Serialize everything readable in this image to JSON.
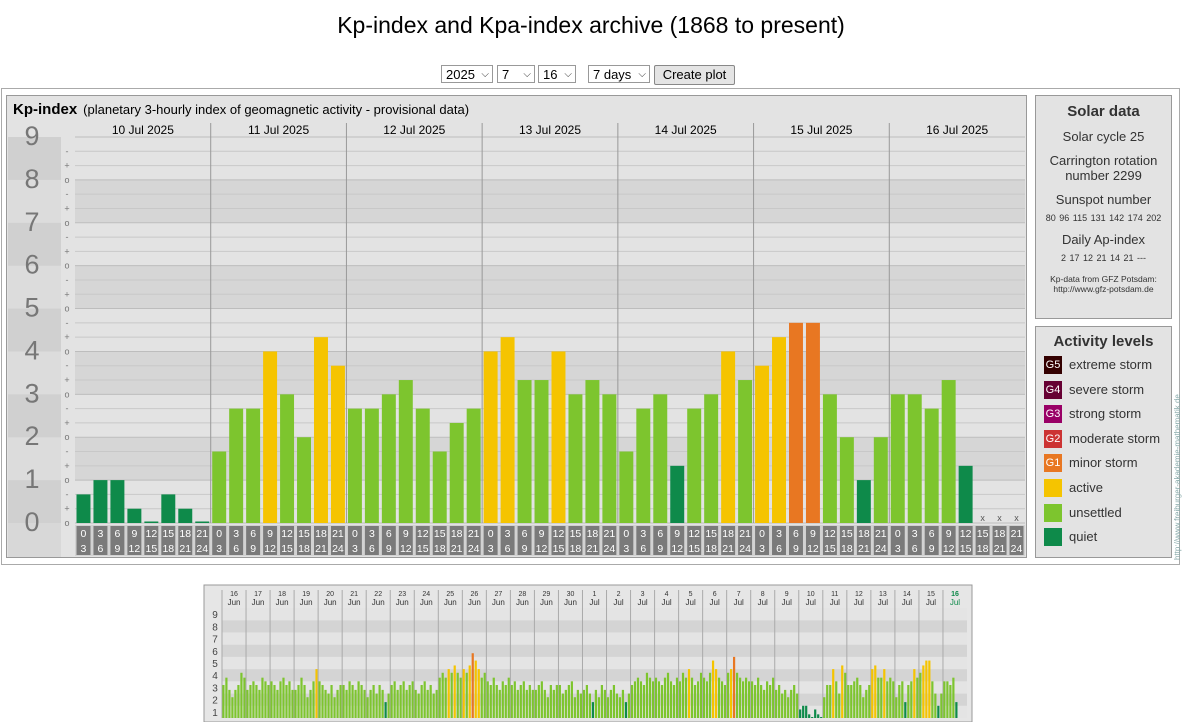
{
  "title": "Kp-index and Kpa-index archive (1868 to present)",
  "controls": {
    "year": "2025",
    "month": "7",
    "day": "16",
    "span": "7 days",
    "create_label": "Create plot"
  },
  "kp_panel": {
    "title": "Kp-index",
    "subtitle": "(planetary 3-hourly index of geomagnetic activity - provisional data)"
  },
  "solar": {
    "title": "Solar data",
    "cycle": "Solar cycle 25",
    "carrington": "Carrington rotation number 2299",
    "sunspot_label": "Sunspot number",
    "sunspot_values": "80  96  115  131  142  174  202",
    "ap_label": "Daily Ap-index",
    "ap_values": "2  17  12  21  14  21  ---",
    "source_line1": "Kp-data from GFZ Potsdam:",
    "source_line2": "http://www.gfz-potsdam.de"
  },
  "activity": {
    "title": "Activity levels",
    "levels": [
      {
        "badge": "G5",
        "label": "extreme storm",
        "color": "#330000"
      },
      {
        "badge": "G4",
        "label": "severe storm",
        "color": "#660033"
      },
      {
        "badge": "G3",
        "label": "strong storm",
        "color": "#990066"
      },
      {
        "badge": "G2",
        "label": "moderate storm",
        "color": "#cc3333"
      },
      {
        "badge": "G1",
        "label": "minor storm",
        "color": "#e87722"
      },
      {
        "badge": "",
        "label": "active",
        "color": "#f5c400"
      },
      {
        "badge": "",
        "label": "unsettled",
        "color": "#7dc52e"
      },
      {
        "badge": "",
        "label": "quiet",
        "color": "#0e8a4a"
      }
    ]
  },
  "side_credit": "http://www.freiburger-akademie-mathematik.de",
  "chart_data": [
    {
      "type": "bar",
      "ylim": [
        0,
        9
      ],
      "yticks": [
        "0",
        "1",
        "2",
        "3",
        "4",
        "5",
        "6",
        "7",
        "8",
        "9"
      ],
      "subticks": [
        "-",
        "o",
        "+"
      ],
      "days": [
        "10 Jul 2025",
        "11 Jul 2025",
        "12 Jul 2025",
        "13 Jul 2025",
        "14 Jul 2025",
        "15 Jul 2025",
        "16 Jul 2025"
      ],
      "hour_top": [
        "0",
        "3",
        "6",
        "9",
        "12",
        "15",
        "18",
        "21"
      ],
      "hour_bottom": [
        "3",
        "6",
        "9",
        "12",
        "15",
        "18",
        "21",
        "24"
      ],
      "missing_marker": "x",
      "values": [
        0.667,
        1,
        1,
        0.333,
        0,
        0.667,
        0.333,
        0,
        1.667,
        2.667,
        2.667,
        4,
        3,
        2,
        4.333,
        3.667,
        2.667,
        2.667,
        3,
        3.333,
        2.667,
        1.667,
        2.333,
        2.667,
        4,
        4.333,
        3.333,
        3.333,
        4,
        3,
        3.333,
        3,
        1.667,
        2.667,
        3,
        1.333,
        2.667,
        3,
        4,
        3.333,
        3.667,
        4.333,
        4.667,
        4.667,
        3,
        2,
        1,
        2,
        3,
        3,
        2.667,
        3.333,
        1.333,
        null,
        null,
        null
      ],
      "colors": [
        "quiet",
        "quiet",
        "quiet",
        "quiet",
        "quiet",
        "quiet",
        "quiet",
        "quiet",
        "unsettled",
        "unsettled",
        "unsettled",
        "active",
        "unsettled",
        "unsettled",
        "active",
        "active",
        "unsettled",
        "unsettled",
        "unsettled",
        "unsettled",
        "unsettled",
        "unsettled",
        "unsettled",
        "unsettled",
        "active",
        "active",
        "unsettled",
        "unsettled",
        "active",
        "unsettled",
        "unsettled",
        "unsettled",
        "unsettled",
        "unsettled",
        "unsettled",
        "quiet",
        "unsettled",
        "unsettled",
        "active",
        "unsettled",
        "active",
        "active",
        "minor",
        "minor",
        "unsettled",
        "unsettled",
        "quiet",
        "unsettled",
        "unsettled",
        "unsettled",
        "unsettled",
        "unsettled",
        "quiet",
        "none",
        "none",
        "none"
      ]
    },
    {
      "type": "bar",
      "ylim": [
        0,
        9
      ],
      "yticks": [
        "1",
        "2",
        "3",
        "4",
        "5",
        "6",
        "7",
        "8",
        "9"
      ],
      "day_labels": [
        {
          "day": "16",
          "month": "Jun"
        },
        {
          "day": "17",
          "month": "Jun"
        },
        {
          "day": "18",
          "month": "Jun"
        },
        {
          "day": "19",
          "month": "Jun"
        },
        {
          "day": "20",
          "month": "Jun"
        },
        {
          "day": "21",
          "month": "Jun"
        },
        {
          "day": "22",
          "month": "Jun"
        },
        {
          "day": "23",
          "month": "Jun"
        },
        {
          "day": "24",
          "month": "Jun"
        },
        {
          "day": "25",
          "month": "Jun"
        },
        {
          "day": "26",
          "month": "Jun"
        },
        {
          "day": "27",
          "month": "Jun"
        },
        {
          "day": "28",
          "month": "Jun"
        },
        {
          "day": "29",
          "month": "Jun"
        },
        {
          "day": "30",
          "month": "Jun"
        },
        {
          "day": "1",
          "month": "Jul"
        },
        {
          "day": "2",
          "month": "Jul"
        },
        {
          "day": "3",
          "month": "Jul"
        },
        {
          "day": "4",
          "month": "Jul"
        },
        {
          "day": "5",
          "month": "Jul"
        },
        {
          "day": "6",
          "month": "Jul"
        },
        {
          "day": "7",
          "month": "Jul"
        },
        {
          "day": "8",
          "month": "Jul"
        },
        {
          "day": "9",
          "month": "Jul"
        },
        {
          "day": "10",
          "month": "Jul"
        },
        {
          "day": "11",
          "month": "Jul"
        },
        {
          "day": "12",
          "month": "Jul"
        },
        {
          "day": "13",
          "month": "Jul"
        },
        {
          "day": "14",
          "month": "Jul"
        },
        {
          "day": "15",
          "month": "Jul"
        },
        {
          "day": "16",
          "month": "Jul"
        }
      ],
      "daily_values": [
        [
          2.7,
          3.3,
          2.3,
          1.7,
          2.3,
          2.7,
          3.7,
          3.3
        ],
        [
          2.3,
          2.7,
          3,
          2.7,
          2.3,
          3.3,
          3,
          2.7
        ],
        [
          3,
          2.7,
          2.3,
          3,
          3.3,
          2.7,
          3,
          2.3
        ],
        [
          2.3,
          2.7,
          3.3,
          2.7,
          1.7,
          2.3,
          3,
          4
        ],
        [
          3,
          2.7,
          2.3,
          2,
          2.7,
          1.7,
          2.3,
          2.7
        ],
        [
          2.7,
          2.3,
          3,
          2.7,
          2.3,
          3,
          2.7,
          2.3
        ],
        [
          1.7,
          2.3,
          2.7,
          2,
          2.7,
          2.3,
          1.3,
          2
        ],
        [
          2.7,
          3,
          2.3,
          2.7,
          3,
          2.3,
          2.7,
          3
        ],
        [
          2.3,
          2,
          2.7,
          3,
          2.3,
          2.7,
          2,
          2.3
        ],
        [
          3.3,
          3.7,
          3.3,
          4,
          3.7,
          4.3,
          3.7,
          3.3
        ],
        [
          4,
          3.7,
          4.3,
          5.3,
          4.7,
          4,
          3.3,
          3.7
        ],
        [
          3,
          2.7,
          3.3,
          2.7,
          2.3,
          3,
          2.7,
          3.3
        ],
        [
          2.7,
          3,
          2.3,
          2.7,
          3,
          2.3,
          2.7,
          2.3
        ],
        [
          2.3,
          2.7,
          3,
          2.3,
          1.7,
          2.7,
          2.3,
          2.7
        ],
        [
          2.7,
          2,
          2.3,
          2.7,
          3,
          1.7,
          2.3,
          2
        ],
        [
          2.3,
          2.7,
          2,
          1.3,
          2.3,
          1.7,
          2.7,
          2.3
        ],
        [
          1.7,
          2.3,
          2.7,
          2,
          1.7,
          2.3,
          1.3,
          2
        ],
        [
          2.7,
          3,
          3.3,
          3,
          2.7,
          3.7,
          3.3,
          3
        ],
        [
          3.3,
          3,
          2.7,
          3.3,
          3.7,
          3,
          2.7,
          3.3
        ],
        [
          3,
          3.7,
          3.3,
          4,
          3.3,
          2.7,
          3,
          3.7
        ],
        [
          3.3,
          3,
          3.7,
          4.7,
          4,
          3.3,
          3,
          2.7
        ],
        [
          3.7,
          4,
          5,
          3.7,
          3.3,
          3,
          3.3,
          3
        ],
        [
          3,
          2.7,
          3.3,
          2.7,
          2.3,
          3,
          2.7,
          3.3
        ],
        [
          2.3,
          2.7,
          2,
          2.3,
          1.7,
          2.3,
          2.7,
          2
        ],
        [
          0.7,
          1,
          1,
          0.3,
          0,
          0.7,
          0.3,
          0
        ],
        [
          1.7,
          2.7,
          2.7,
          4,
          3,
          2,
          4.3,
          3.7
        ],
        [
          2.7,
          2.7,
          3,
          3.3,
          2.7,
          1.7,
          2.3,
          2.7
        ],
        [
          4,
          4.3,
          3.3,
          3.3,
          4,
          3,
          3.3,
          3
        ],
        [
          1.7,
          2.7,
          3,
          1.3,
          2.7,
          3,
          4,
          3.3
        ],
        [
          3.7,
          4.3,
          4.7,
          4.7,
          3,
          2,
          1,
          2
        ],
        [
          3,
          3,
          2.7,
          3.3,
          1.3,
          null,
          null,
          null
        ]
      ]
    }
  ]
}
